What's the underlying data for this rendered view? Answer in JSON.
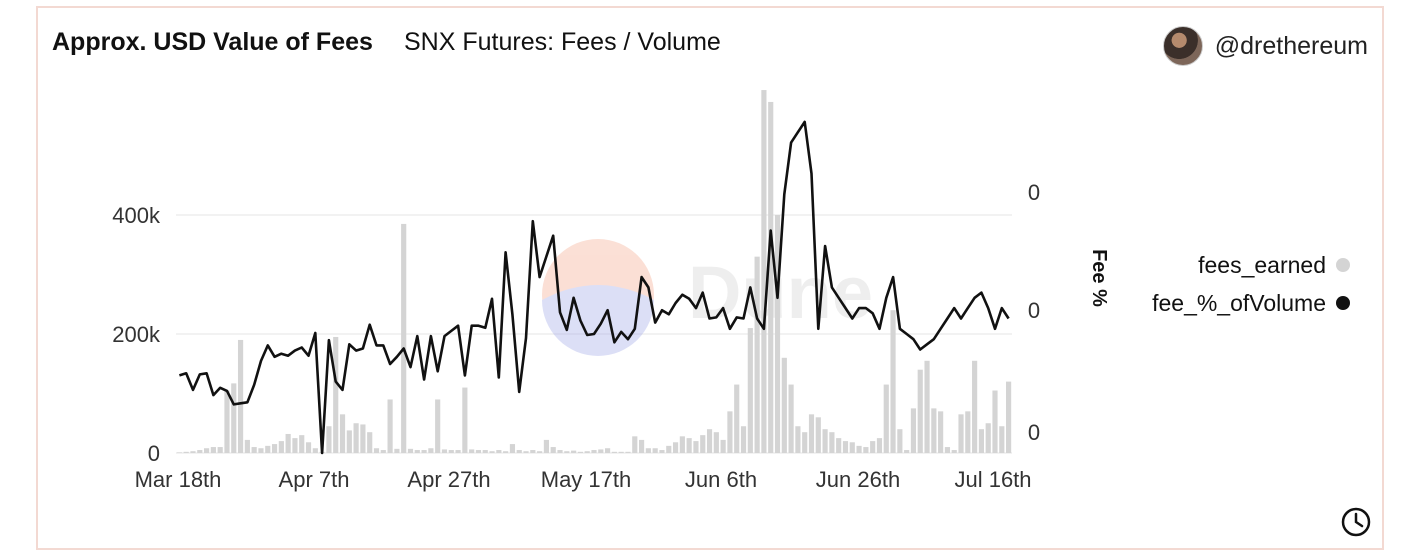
{
  "header": {
    "title": "Approx. USD Value of Fees",
    "subtitle": "SNX Futures: Fees / Volume",
    "author_handle": "@drethereum"
  },
  "watermark": "Dune",
  "icons": {
    "avatar": "user-avatar",
    "clock": "clock-icon"
  },
  "colors": {
    "bars": "#d4d4d4",
    "line": "#111111",
    "grid": "#eeeeee"
  },
  "chart_data": {
    "type": "bar+line",
    "x_ticks": [
      "Mar 18th",
      "Apr 7th",
      "Apr 27th",
      "May 17th",
      "Jun 6th",
      "Jun 26th",
      "Jul 16th"
    ],
    "y_left": {
      "label": "",
      "ticks": [
        "0",
        "200k",
        "400k"
      ],
      "range": [
        0,
        600000
      ]
    },
    "y_right": {
      "label": "Fee %",
      "ticks": [
        "0",
        "0",
        "0"
      ],
      "range": [
        -0.0002,
        0.00049
      ]
    },
    "legend_position": "right",
    "series": [
      {
        "name": "fees_earned",
        "type": "bar",
        "values": [
          1000,
          2000,
          3000,
          5000,
          8000,
          10000,
          10000,
          105000,
          117000,
          190000,
          22000,
          10000,
          8000,
          12000,
          15000,
          20000,
          32000,
          25000,
          30000,
          18000,
          8000,
          2000,
          45000,
          195000,
          65000,
          38000,
          50000,
          48000,
          35000,
          8000,
          5000,
          90000,
          7000,
          385000,
          7000,
          5000,
          5000,
          8000,
          90000,
          6000,
          5000,
          5000,
          110000,
          6000,
          5000,
          5000,
          3000,
          5000,
          3000,
          15000,
          5000,
          3000,
          5000,
          3000,
          22000,
          10000,
          5000,
          3000,
          4000,
          2000,
          3000,
          5000,
          6000,
          8000,
          2000,
          2000,
          2000,
          28000,
          22000,
          8000,
          8000,
          5000,
          12000,
          18000,
          28000,
          25000,
          20000,
          30000,
          40000,
          35000,
          22000,
          70000,
          115000,
          45000,
          210000,
          330000,
          610000,
          590000,
          400000,
          160000,
          115000,
          45000,
          35000,
          65000,
          60000,
          40000,
          35000,
          25000,
          20000,
          18000,
          12000,
          10000,
          20000,
          25000,
          115000,
          240000,
          40000,
          5000,
          75000,
          140000,
          155000,
          75000,
          70000,
          10000,
          5000,
          65000,
          70000,
          155000,
          40000,
          50000,
          105000,
          45000,
          120000
        ],
        "color": "#d4d4d4"
      },
      {
        "name": "fee_%_ofVolume",
        "type": "line",
        "values": [
          -5e-05,
          -4.6e-05,
          -7.8e-05,
          -4.8e-05,
          -4.6e-05,
          -8.8e-05,
          -7.4e-05,
          -8e-05,
          -0.000106,
          -0.000104,
          -0.000102,
          -6.8e-05,
          -2.2e-05,
          8e-06,
          -1.4e-05,
          -8e-06,
          -1.2e-05,
          -2e-06,
          4e-06,
          -1.2e-05,
          3.2e-05,
          -0.0002,
          1.8e-05,
          -6.2e-05,
          -7.8e-05,
          1e-05,
          -2e-06,
          2e-06,
          4.8e-05,
          8e-06,
          8e-06,
          -2.8e-05,
          -1.4e-05,
          2e-06,
          -3.4e-05,
          2.6e-05,
          -5.8e-05,
          2.6e-05,
          -4.2e-05,
          2.6e-05,
          3.6e-05,
          4.6e-05,
          -5e-05,
          4.6e-05,
          4.6e-05,
          4.2e-05,
          9.8e-05,
          -5.4e-05,
          0.000188,
          6.8e-05,
          -8.2e-05,
          2.2e-05,
          0.000248,
          0.00014,
          0.00018,
          0.00022,
          7.2e-05,
          3.8e-05,
          0.0001,
          5.6e-05,
          2.8e-05,
          3e-05,
          5e-05,
          7.6e-05,
          1.4e-05,
          3.4e-05,
          2e-05,
          4e-05,
          0.00014,
          0.00012,
          5.2e-05,
          7.6e-05,
          6.8e-05,
          9e-05,
          0.000106,
          9.8e-05,
          8e-05,
          0.00011,
          6e-05,
          6.2e-05,
          8e-05,
          4e-05,
          6.2e-05,
          6e-05,
          0.00012,
          6e-05,
          4e-05,
          0.00023,
          0.0001,
          0.0003,
          0.0004,
          0.00042,
          0.00044,
          0.00034,
          4e-05,
          0.0002,
          0.00012,
          0.0001,
          8e-05,
          6e-05,
          8e-05,
          8e-05,
          7e-05,
          4e-05,
          0.0001,
          0.00014,
          4e-05,
          3e-05,
          2e-05,
          0.0,
          1e-05,
          2e-05,
          4e-05,
          6e-05,
          8e-05,
          6e-05,
          8e-05,
          0.0001,
          0.00011,
          8e-05,
          4e-05,
          8e-05,
          6e-05
        ],
        "color": "#111111"
      }
    ]
  },
  "legend": [
    {
      "label": "fees_earned",
      "color": "#d4d4d4"
    },
    {
      "label": "fee_%_ofVolume",
      "color": "#111111"
    }
  ]
}
